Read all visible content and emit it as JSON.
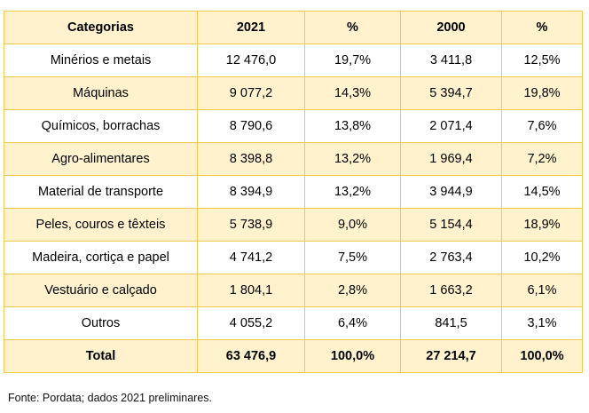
{
  "table": {
    "headers": [
      "Categorias",
      "2021",
      "%",
      "2000",
      "%"
    ],
    "rows": [
      [
        "Minérios e metais",
        "12 476,0",
        "19,7%",
        "3 411,8",
        "12,5%"
      ],
      [
        "Máquinas",
        "9 077,2",
        "14,3%",
        "5 394,7",
        "19,8%"
      ],
      [
        "Químicos, borrachas",
        "8 790,6",
        "13,8%",
        "2 071,4",
        "7,6%"
      ],
      [
        "Agro-alimentares",
        "8 398,8",
        "13,2%",
        "1 969,4",
        "7,2%"
      ],
      [
        "Material de transporte",
        "8 394,9",
        "13,2%",
        "3 944,9",
        "14,5%"
      ],
      [
        "Peles, couros e têxteis",
        "5 738,9",
        "9,0%",
        "5 154,4",
        "18,9%"
      ],
      [
        "Madeira, cortiça e papel",
        "4 741,2",
        "7,5%",
        "2 763,4",
        "10,2%"
      ],
      [
        "Vestuário e calçado",
        "1 804,1",
        "2,8%",
        "1 663,2",
        "6,1%"
      ],
      [
        "Outros",
        "4 055,2",
        "6,4%",
        "841,5",
        "3,1%"
      ]
    ],
    "total": [
      "Total",
      "63 476,9",
      "100,0%",
      "27 214,7",
      "100,0%"
    ]
  },
  "source": "Fonte: Pordata; dados 2021 preliminares.",
  "colors": {
    "border": "#f2c94c",
    "shade": "#fff2cc",
    "white": "#ffffff"
  }
}
